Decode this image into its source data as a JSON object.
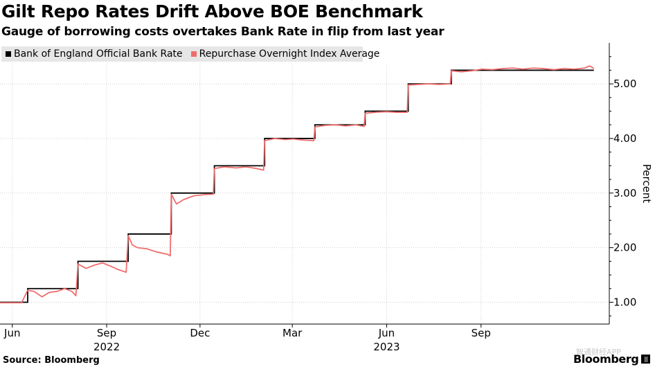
{
  "header": {
    "title": "Gilt Repo Rates Drift Above BOE Benchmark",
    "subtitle": "Gauge of borrowing costs overtakes Bank Rate in flip from last year"
  },
  "footer": {
    "source": "Source: Bloomberg",
    "brand": "Bloomberg",
    "watermark": "智通财经APP"
  },
  "colors": {
    "bank_rate": "#000000",
    "repo": "#f06c6c",
    "legend_bg": "#e6e6e6"
  },
  "chart_data": {
    "type": "line",
    "title": "Gilt Repo Rates Drift Above BOE Benchmark",
    "subtitle": "Gauge of borrowing costs overtakes Bank Rate in flip from last year",
    "ylabel": "Percent",
    "xlabel": "",
    "ylim": [
      0.6,
      5.75
    ],
    "yticks": [
      1.0,
      2.0,
      3.0,
      4.0,
      5.0
    ],
    "ytick_labels": [
      "1.00",
      "2.00",
      "3.00",
      "4.00",
      "5.00"
    ],
    "xrange": [
      "2022-05-20",
      "2023-12-31"
    ],
    "xticks": [
      {
        "date": "2022-06-01",
        "label": "Jun",
        "year": ""
      },
      {
        "date": "2022-09-01",
        "label": "Sep",
        "year": "2022"
      },
      {
        "date": "2022-12-01",
        "label": "Dec",
        "year": ""
      },
      {
        "date": "2023-03-01",
        "label": "Mar",
        "year": ""
      },
      {
        "date": "2023-06-01",
        "label": "Jun",
        "year": "2023"
      },
      {
        "date": "2023-09-01",
        "label": "Sep",
        "year": ""
      }
    ],
    "legend_position": "top-left",
    "series": [
      {
        "name": "Bank of England Official Bank Rate",
        "color": "#000000",
        "style": "step",
        "points": [
          [
            "2022-05-20",
            1.0
          ],
          [
            "2022-06-16",
            1.25
          ],
          [
            "2022-08-04",
            1.75
          ],
          [
            "2022-09-22",
            2.25
          ],
          [
            "2022-11-03",
            3.0
          ],
          [
            "2022-12-15",
            3.5
          ],
          [
            "2023-02-02",
            4.0
          ],
          [
            "2023-03-23",
            4.25
          ],
          [
            "2023-05-11",
            4.5
          ],
          [
            "2023-06-22",
            5.0
          ],
          [
            "2023-08-03",
            5.25
          ],
          [
            "2023-12-20",
            5.25
          ]
        ]
      },
      {
        "name": "Repurchase Overnight Index Average",
        "color": "#f06c6c",
        "style": "line",
        "points": [
          [
            "2022-05-20",
            0.99
          ],
          [
            "2022-06-10",
            0.99
          ],
          [
            "2022-06-16",
            1.22
          ],
          [
            "2022-06-22",
            1.2
          ],
          [
            "2022-06-30",
            1.1
          ],
          [
            "2022-07-07",
            1.18
          ],
          [
            "2022-07-15",
            1.2
          ],
          [
            "2022-07-22",
            1.25
          ],
          [
            "2022-07-29",
            1.2
          ],
          [
            "2022-08-02",
            1.12
          ],
          [
            "2022-08-04",
            1.7
          ],
          [
            "2022-08-12",
            1.62
          ],
          [
            "2022-08-20",
            1.68
          ],
          [
            "2022-08-28",
            1.72
          ],
          [
            "2022-09-05",
            1.66
          ],
          [
            "2022-09-12",
            1.6
          ],
          [
            "2022-09-20",
            1.55
          ],
          [
            "2022-09-22",
            2.22
          ],
          [
            "2022-09-26",
            2.05
          ],
          [
            "2022-10-01",
            2.0
          ],
          [
            "2022-10-10",
            1.98
          ],
          [
            "2022-10-20",
            1.92
          ],
          [
            "2022-10-30",
            1.88
          ],
          [
            "2022-11-02",
            1.85
          ],
          [
            "2022-11-03",
            2.98
          ],
          [
            "2022-11-08",
            2.8
          ],
          [
            "2022-11-15",
            2.88
          ],
          [
            "2022-11-25",
            2.95
          ],
          [
            "2022-12-05",
            2.97
          ],
          [
            "2022-12-14",
            2.98
          ],
          [
            "2022-12-15",
            3.45
          ],
          [
            "2022-12-25",
            3.48
          ],
          [
            "2023-01-05",
            3.46
          ],
          [
            "2023-01-15",
            3.48
          ],
          [
            "2023-01-25",
            3.45
          ],
          [
            "2023-02-01",
            3.42
          ],
          [
            "2023-02-02",
            3.96
          ],
          [
            "2023-02-12",
            4.0
          ],
          [
            "2023-02-22",
            3.98
          ],
          [
            "2023-03-02",
            3.99
          ],
          [
            "2023-03-12",
            3.97
          ],
          [
            "2023-03-22",
            3.96
          ],
          [
            "2023-03-23",
            4.21
          ],
          [
            "2023-04-02",
            4.24
          ],
          [
            "2023-04-12",
            4.25
          ],
          [
            "2023-04-22",
            4.23
          ],
          [
            "2023-05-02",
            4.25
          ],
          [
            "2023-05-10",
            4.22
          ],
          [
            "2023-05-11",
            4.46
          ],
          [
            "2023-05-21",
            4.48
          ],
          [
            "2023-06-01",
            4.49
          ],
          [
            "2023-06-10",
            4.48
          ],
          [
            "2023-06-21",
            4.48
          ],
          [
            "2023-06-22",
            4.98
          ],
          [
            "2023-07-02",
            4.99
          ],
          [
            "2023-07-12",
            5.0
          ],
          [
            "2023-07-22",
            4.99
          ],
          [
            "2023-08-02",
            5.0
          ],
          [
            "2023-08-03",
            5.24
          ],
          [
            "2023-08-13",
            5.22
          ],
          [
            "2023-08-23",
            5.24
          ],
          [
            "2023-09-02",
            5.27
          ],
          [
            "2023-09-12",
            5.26
          ],
          [
            "2023-09-22",
            5.28
          ],
          [
            "2023-10-02",
            5.29
          ],
          [
            "2023-10-12",
            5.27
          ],
          [
            "2023-10-22",
            5.29
          ],
          [
            "2023-11-01",
            5.28
          ],
          [
            "2023-11-11",
            5.26
          ],
          [
            "2023-11-21",
            5.28
          ],
          [
            "2023-12-01",
            5.27
          ],
          [
            "2023-12-11",
            5.29
          ],
          [
            "2023-12-16",
            5.33
          ],
          [
            "2023-12-20",
            5.28
          ]
        ]
      }
    ]
  }
}
